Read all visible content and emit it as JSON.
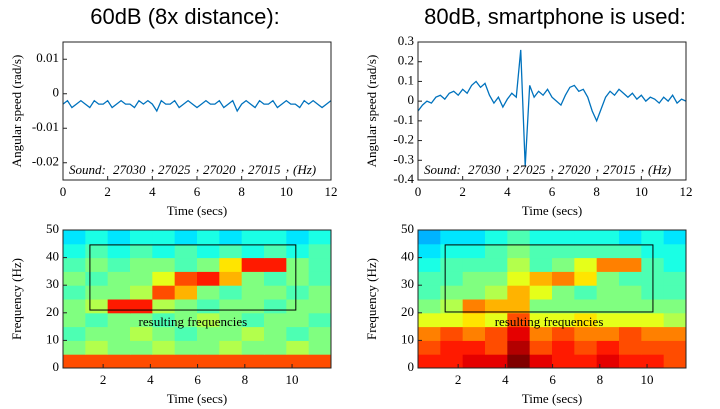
{
  "chart_data": [
    {
      "type": "line",
      "title": "60dB (8x distance):",
      "xlabel": "Time (secs)",
      "ylabel": "Angular speed (rad/s)",
      "color": "#0072bd",
      "xlim": [
        0,
        12
      ],
      "xticks": [
        0,
        2,
        4,
        6,
        8,
        10,
        12
      ],
      "ylim": [
        -0.025,
        0.015
      ],
      "yticks": [
        0.01,
        0,
        -0.01,
        -0.02
      ],
      "annotation": {
        "label": "Sound:",
        "frequencies": [
          27030,
          27025,
          27020,
          27015
        ],
        "separator": ",",
        "unit": "(Hz)"
      },
      "x": [
        0,
        0.2,
        0.4,
        0.6,
        0.8,
        1,
        1.2,
        1.4,
        1.6,
        1.8,
        2,
        2.2,
        2.4,
        2.6,
        2.8,
        3,
        3.2,
        3.4,
        3.6,
        3.8,
        4,
        4.2,
        4.4,
        4.6,
        4.8,
        5,
        5.2,
        5.4,
        5.6,
        5.8,
        6,
        6.2,
        6.4,
        6.6,
        6.8,
        7,
        7.2,
        7.4,
        7.6,
        7.8,
        8,
        8.2,
        8.4,
        8.6,
        8.8,
        9,
        9.2,
        9.4,
        9.6,
        9.8,
        10,
        10.2,
        10.4,
        10.6,
        10.8,
        11,
        11.2,
        11.4,
        11.6,
        11.8,
        12
      ],
      "values": [
        -0.003,
        -0.002,
        -0.004,
        -0.003,
        -0.002,
        -0.003,
        -0.004,
        -0.002,
        -0.003,
        -0.003,
        -0.002,
        -0.004,
        -0.003,
        -0.002,
        -0.003,
        -0.003,
        -0.004,
        -0.002,
        -0.003,
        -0.002,
        -0.003,
        -0.005,
        -0.002,
        -0.003,
        -0.003,
        -0.002,
        -0.004,
        -0.003,
        -0.002,
        -0.003,
        -0.004,
        -0.003,
        -0.002,
        -0.003,
        -0.003,
        -0.002,
        -0.004,
        -0.003,
        -0.002,
        -0.005,
        -0.003,
        -0.002,
        -0.003,
        -0.004,
        -0.002,
        -0.003,
        -0.003,
        -0.002,
        -0.004,
        -0.003,
        -0.002,
        -0.003,
        -0.003,
        -0.004,
        -0.002,
        -0.003,
        -0.002,
        -0.003,
        -0.004,
        -0.003,
        -0.002
      ]
    },
    {
      "type": "line",
      "title": "80dB, smartphone is used:",
      "xlabel": "Time (secs)",
      "ylabel": "Angular speed (rad/s)",
      "color": "#0072bd",
      "xlim": [
        0,
        12
      ],
      "xticks": [
        0,
        2,
        4,
        6,
        8,
        10,
        12
      ],
      "ylim": [
        -0.4,
        0.3
      ],
      "yticks": [
        0.3,
        0.2,
        0.1,
        0,
        -0.1,
        -0.2,
        -0.3,
        -0.4
      ],
      "annotation": {
        "label": "Sound:",
        "frequencies": [
          27030,
          27025,
          27020,
          27015
        ],
        "separator": ",",
        "unit": "(Hz)"
      },
      "x": [
        0,
        0.2,
        0.4,
        0.6,
        0.8,
        1,
        1.2,
        1.4,
        1.6,
        1.8,
        2,
        2.2,
        2.4,
        2.6,
        2.8,
        3,
        3.2,
        3.4,
        3.6,
        3.8,
        4,
        4.2,
        4.4,
        4.6,
        4.8,
        5,
        5.2,
        5.4,
        5.6,
        5.8,
        6,
        6.2,
        6.4,
        6.6,
        6.8,
        7,
        7.2,
        7.4,
        7.6,
        7.8,
        8,
        8.2,
        8.4,
        8.6,
        8.8,
        9,
        9.2,
        9.4,
        9.6,
        9.8,
        10,
        10.2,
        10.4,
        10.6,
        10.8,
        11,
        11.2,
        11.4,
        11.6,
        11.8,
        12
      ],
      "values": [
        -0.05,
        -0.02,
        0,
        -0.01,
        0.02,
        0.03,
        0.01,
        0.04,
        0.05,
        0.03,
        0.06,
        0.04,
        0.08,
        0.1,
        0.07,
        0.09,
        0.03,
        -0.01,
        0.02,
        -0.03,
        0.01,
        0.04,
        0.02,
        0.26,
        -0.33,
        0.08,
        0.02,
        0.05,
        0.03,
        0.06,
        0.02,
        0,
        -0.02,
        0.03,
        0.07,
        0.08,
        0.05,
        0.06,
        0.02,
        -0.05,
        -0.1,
        -0.04,
        0.02,
        0.05,
        0.03,
        0.06,
        0.04,
        0.02,
        0.04,
        0.01,
        0.03,
        0,
        0.02,
        0.01,
        -0.01,
        0.02,
        0,
        0.03,
        -0.01,
        0.01,
        0
      ]
    },
    {
      "type": "heatmap",
      "xlabel": "Time (secs)",
      "ylabel": "Frequency (Hz)",
      "xlim": [
        0.3,
        11.65
      ],
      "xticks": [
        2,
        4,
        6,
        8,
        10
      ],
      "ylim": [
        0,
        50
      ],
      "yticks": [
        0,
        10,
        20,
        30,
        40,
        50
      ],
      "annotation": "resulting frequencies",
      "box": {
        "x": [
          1.44,
          10.16
        ],
        "y": [
          21,
          44.6
        ]
      },
      "z": [
        [
          0.8,
          0.8,
          0.8,
          0.8,
          0.8,
          0.8,
          0.8,
          0.8,
          0.8,
          0.8,
          0.8,
          0.8
        ],
        [
          0.5,
          0.55,
          0.5,
          0.5,
          0.55,
          0.5,
          0.5,
          0.55,
          0.5,
          0.5,
          0.55,
          0.5
        ],
        [
          0.45,
          0.5,
          0.5,
          0.55,
          0.5,
          0.45,
          0.5,
          0.5,
          0.55,
          0.5,
          0.45,
          0.5
        ],
        [
          0.5,
          0.45,
          0.5,
          0.5,
          0.45,
          0.5,
          0.55,
          0.5,
          0.45,
          0.5,
          0.5,
          0.45
        ],
        [
          0.5,
          0.55,
          0.85,
          0.85,
          0.55,
          0.5,
          0.45,
          0.5,
          0.5,
          0.45,
          0.5,
          0.5
        ],
        [
          0.45,
          0.5,
          0.5,
          0.55,
          0.8,
          0.7,
          0.5,
          0.45,
          0.5,
          0.5,
          0.45,
          0.5
        ],
        [
          0.5,
          0.45,
          0.5,
          0.5,
          0.6,
          0.8,
          0.85,
          0.7,
          0.5,
          0.45,
          0.5,
          0.45
        ],
        [
          0.45,
          0.5,
          0.45,
          0.5,
          0.5,
          0.45,
          0.5,
          0.65,
          0.85,
          0.85,
          0.5,
          0.45
        ],
        [
          0.4,
          0.45,
          0.4,
          0.45,
          0.4,
          0.45,
          0.4,
          0.45,
          0.4,
          0.45,
          0.4,
          0.45
        ],
        [
          0.35,
          0.4,
          0.35,
          0.4,
          0.4,
          0.35,
          0.4,
          0.35,
          0.4,
          0.4,
          0.35,
          0.4
        ]
      ]
    },
    {
      "type": "heatmap",
      "xlabel": "Time (secs)",
      "ylabel": "Frequency (Hz)",
      "xlim": [
        0.3,
        11.65
      ],
      "xticks": [
        2,
        4,
        6,
        8,
        10
      ],
      "ylim": [
        0,
        50
      ],
      "yticks": [
        0,
        10,
        20,
        30,
        40,
        50
      ],
      "annotation": "resulting frequencies",
      "box": {
        "x": [
          1.45,
          10.25
        ],
        "y": [
          20.3,
          44.6
        ]
      },
      "z": [
        [
          0.85,
          0.85,
          0.9,
          0.9,
          1,
          0.9,
          0.85,
          0.85,
          0.9,
          0.85,
          0.85,
          0.8
        ],
        [
          0.8,
          0.85,
          0.85,
          0.8,
          0.95,
          0.8,
          0.85,
          0.8,
          0.85,
          0.8,
          0.8,
          0.8
        ],
        [
          0.75,
          0.8,
          0.75,
          0.8,
          0.9,
          0.75,
          0.8,
          0.75,
          0.75,
          0.8,
          0.75,
          0.75
        ],
        [
          0.6,
          0.6,
          0.65,
          0.6,
          0.8,
          0.6,
          0.6,
          0.65,
          0.6,
          0.6,
          0.6,
          0.55
        ],
        [
          0.5,
          0.55,
          0.75,
          0.7,
          0.7,
          0.5,
          0.5,
          0.5,
          0.5,
          0.5,
          0.5,
          0.5
        ],
        [
          0.45,
          0.5,
          0.5,
          0.55,
          0.7,
          0.6,
          0.5,
          0.45,
          0.5,
          0.5,
          0.45,
          0.45
        ],
        [
          0.45,
          0.45,
          0.5,
          0.5,
          0.6,
          0.7,
          0.75,
          0.65,
          0.5,
          0.45,
          0.45,
          0.45
        ],
        [
          0.4,
          0.45,
          0.45,
          0.45,
          0.55,
          0.45,
          0.5,
          0.6,
          0.75,
          0.75,
          0.45,
          0.4
        ],
        [
          0.35,
          0.4,
          0.4,
          0.45,
          0.5,
          0.45,
          0.45,
          0.45,
          0.45,
          0.45,
          0.4,
          0.4
        ],
        [
          0.3,
          0.35,
          0.35,
          0.4,
          0.45,
          0.4,
          0.4,
          0.4,
          0.4,
          0.35,
          0.4,
          0.35
        ]
      ]
    }
  ]
}
